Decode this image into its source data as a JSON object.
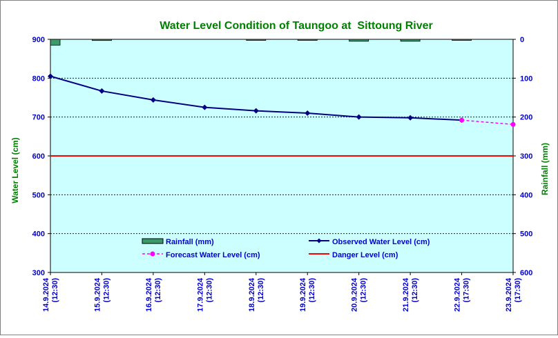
{
  "chart_data": {
    "type": "line",
    "title": "Water Level Condition of Taungoo at  Sittoung River",
    "ylabel_left": "Water Level (cm)",
    "ylabel_right": "Rainfall (mm)",
    "ylim_left": [
      300,
      900
    ],
    "ylim_right": [
      600,
      0
    ],
    "left_ticks": [
      "300",
      "400",
      "500",
      "600",
      "700",
      "800",
      "900"
    ],
    "right_ticks": [
      "600",
      "500",
      "400",
      "300",
      "200",
      "100",
      "0"
    ],
    "categories": [
      [
        "14.9.2024",
        "(12:30)"
      ],
      [
        "15.9.2024",
        "(12:30)"
      ],
      [
        "16.9.2024",
        "(12:30)"
      ],
      [
        "17.9.2024",
        "(12:30)"
      ],
      [
        "18.9.2024",
        "(12:30)"
      ],
      [
        "19.9.2024",
        "(12:30)"
      ],
      [
        "20.9.2024",
        "(12:30)"
      ],
      [
        "21.9.2024",
        "(12:30)"
      ],
      [
        "22.9.2024",
        "(17:30)"
      ],
      [
        "23.9.2024",
        "(17:30)"
      ]
    ],
    "series": [
      {
        "name": "Rainfall (mm)",
        "kind": "bar",
        "axis": "right",
        "color": "#3a9a6a",
        "values": [
          15,
          3,
          null,
          null,
          1,
          1,
          5,
          5,
          1,
          null
        ]
      },
      {
        "name": "Observed Water Level (cm)",
        "kind": "line",
        "axis": "left",
        "color": "#000080",
        "values": [
          805,
          767,
          744,
          725,
          716,
          710,
          700,
          698,
          692,
          null
        ]
      },
      {
        "name": "Forecast Water Level (cm)",
        "kind": "dashed-line",
        "axis": "left",
        "color": "#ff00ff",
        "values": [
          null,
          null,
          null,
          null,
          null,
          null,
          null,
          null,
          692,
          681
        ]
      },
      {
        "name": "Danger Level (cm)",
        "kind": "hline",
        "axis": "left",
        "color": "#ff0000",
        "value": 600
      }
    ],
    "grid": true,
    "legend_position": "inside-bottom",
    "colors": {
      "plot_background": "#ccffff",
      "title": "#008000",
      "axis_label": "#008000",
      "tick": "#0000cc",
      "bar_fill": "#3a9a6a",
      "observed": "#000080",
      "forecast": "#ff00ff",
      "danger": "#ff0000"
    }
  }
}
